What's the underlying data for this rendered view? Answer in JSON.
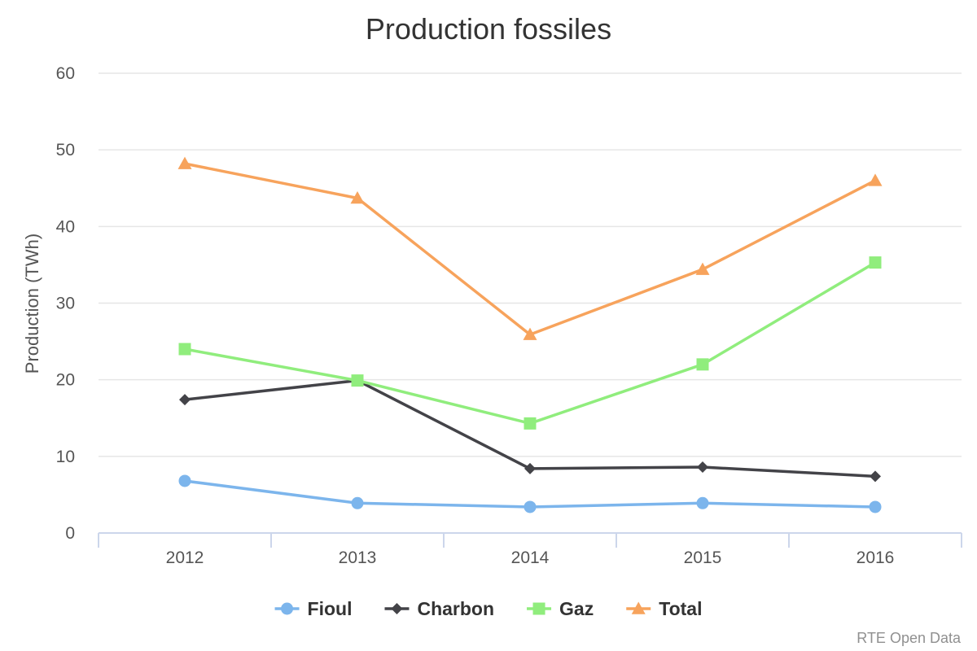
{
  "chart_data": {
    "type": "line",
    "title": "Production fossiles",
    "ylabel": "Production (TWh)",
    "xlabel": "",
    "categories": [
      "2012",
      "2013",
      "2014",
      "2015",
      "2016"
    ],
    "ylim": [
      0,
      60
    ],
    "yticks": [
      0,
      10,
      20,
      30,
      40,
      50,
      60
    ],
    "grid": true,
    "legend_position": "bottom",
    "series": [
      {
        "name": "Fioul",
        "values": [
          6.8,
          3.9,
          3.4,
          3.9,
          3.4
        ],
        "color": "#7cb5ec",
        "marker": "circle"
      },
      {
        "name": "Charbon",
        "values": [
          17.4,
          19.9,
          8.4,
          8.6,
          7.4
        ],
        "color": "#434348",
        "marker": "diamond"
      },
      {
        "name": "Gaz",
        "values": [
          24.0,
          19.9,
          14.3,
          22.0,
          35.3
        ],
        "color": "#90ed7d",
        "marker": "square"
      },
      {
        "name": "Total",
        "values": [
          48.2,
          43.7,
          25.9,
          34.4,
          46.0
        ],
        "color": "#f7a35c",
        "marker": "triangle"
      }
    ]
  },
  "credits": "RTE Open Data"
}
